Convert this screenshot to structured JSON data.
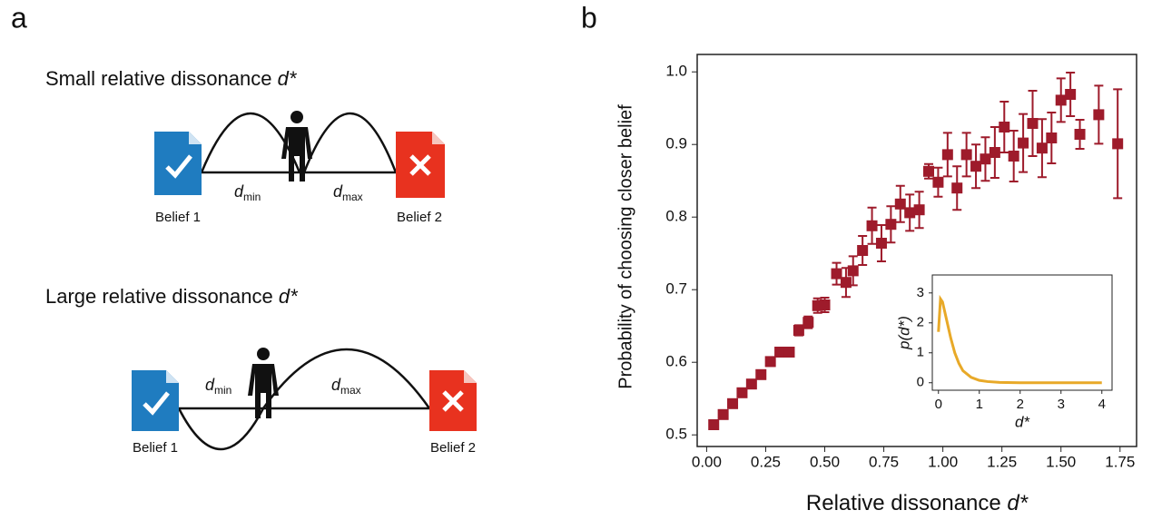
{
  "panel_a": {
    "label": "a",
    "small": {
      "text": "Small relative dissonance",
      "symbol": "d*",
      "d": "d",
      "min": "min",
      "max": "max",
      "belief1": "Belief 1",
      "belief2": "Belief 2"
    },
    "large": {
      "text": "Large relative dissonance",
      "symbol": "d*",
      "d": "d",
      "min": "min",
      "max": "max",
      "belief1": "Belief 1",
      "belief2": "Belief 2"
    }
  },
  "panel_b_label": "b",
  "chart_data": [
    {
      "type": "scatter",
      "xlabel": "Relative dissonance",
      "xlabel_symbol": "d*",
      "ylabel": "Probability of choosing closer belief",
      "color": "#9e1b2b",
      "xlim": [
        -0.04,
        1.82
      ],
      "ylim": [
        0.484,
        1.024
      ],
      "xticks": [
        {
          "value": 0,
          "label": "0.00"
        },
        {
          "value": 0.25,
          "label": "0.25"
        },
        {
          "value": 0.5,
          "label": "0.50"
        },
        {
          "value": 0.75,
          "label": "0.75"
        },
        {
          "value": 1,
          "label": "1.00"
        },
        {
          "value": 1.25,
          "label": "1.25"
        },
        {
          "value": 1.5,
          "label": "1.50"
        },
        {
          "value": 1.75,
          "label": "1.75"
        }
      ],
      "yticks": [
        0.5,
        0.6,
        0.7,
        0.8,
        0.9,
        {
          "value": 1,
          "label": "1.0"
        }
      ],
      "x": [
        0.03,
        0.07,
        0.11,
        0.15,
        0.19,
        0.23,
        0.27,
        0.31,
        0.35,
        0.39,
        0.43,
        0.47,
        0.5,
        0.55,
        0.59,
        0.62,
        0.66,
        0.7,
        0.74,
        0.78,
        0.82,
        0.86,
        0.9,
        0.94,
        0.98,
        1.02,
        1.06,
        1.1,
        1.14,
        1.18,
        1.22,
        1.26,
        1.3,
        1.34,
        1.38,
        1.42,
        1.46,
        1.5,
        1.54,
        1.58,
        1.66,
        1.74
      ],
      "values": [
        0.514,
        0.528,
        0.543,
        0.558,
        0.57,
        0.583,
        0.601,
        0.614,
        0.614,
        0.644,
        0.655,
        0.678,
        0.679,
        0.722,
        0.71,
        0.726,
        0.754,
        0.788,
        0.764,
        0.79,
        0.818,
        0.806,
        0.81,
        0.863,
        0.848,
        0.886,
        0.84,
        0.886,
        0.87,
        0.88,
        0.889,
        0.924,
        0.884,
        0.902,
        0.929,
        0.895,
        0.909,
        0.961,
        0.969,
        0.914,
        0.941,
        0.901
      ],
      "errors": [
        0.004,
        0.004,
        0.005,
        0.005,
        0.005,
        0.005,
        0.006,
        0.006,
        0.006,
        0.007,
        0.008,
        0.01,
        0.01,
        0.015,
        0.02,
        0.02,
        0.02,
        0.025,
        0.025,
        0.025,
        0.025,
        0.025,
        0.025,
        0.01,
        0.02,
        0.03,
        0.03,
        0.03,
        0.03,
        0.03,
        0.035,
        0.035,
        0.035,
        0.04,
        0.045,
        0.04,
        0.035,
        0.03,
        0.03,
        0.02,
        0.04,
        0.075
      ]
    },
    {
      "type": "line",
      "xlabel": "d*",
      "ylabel": "p(d*)",
      "color": "#e8a928",
      "xlim": [
        -0.15,
        4.25
      ],
      "ylim": [
        -0.25,
        3.6
      ],
      "xticks": [
        0,
        1,
        2,
        3,
        4
      ],
      "yticks": [
        0,
        1,
        2,
        3
      ],
      "x": [
        0,
        0.05,
        0.1,
        0.2,
        0.3,
        0.4,
        0.5,
        0.6,
        0.8,
        1,
        1.2,
        1.5,
        2,
        3,
        4
      ],
      "values": [
        1.7,
        2.8,
        2.7,
        2.1,
        1.5,
        1,
        0.65,
        0.4,
        0.18,
        0.08,
        0.04,
        0.01,
        0,
        0,
        0
      ]
    }
  ]
}
